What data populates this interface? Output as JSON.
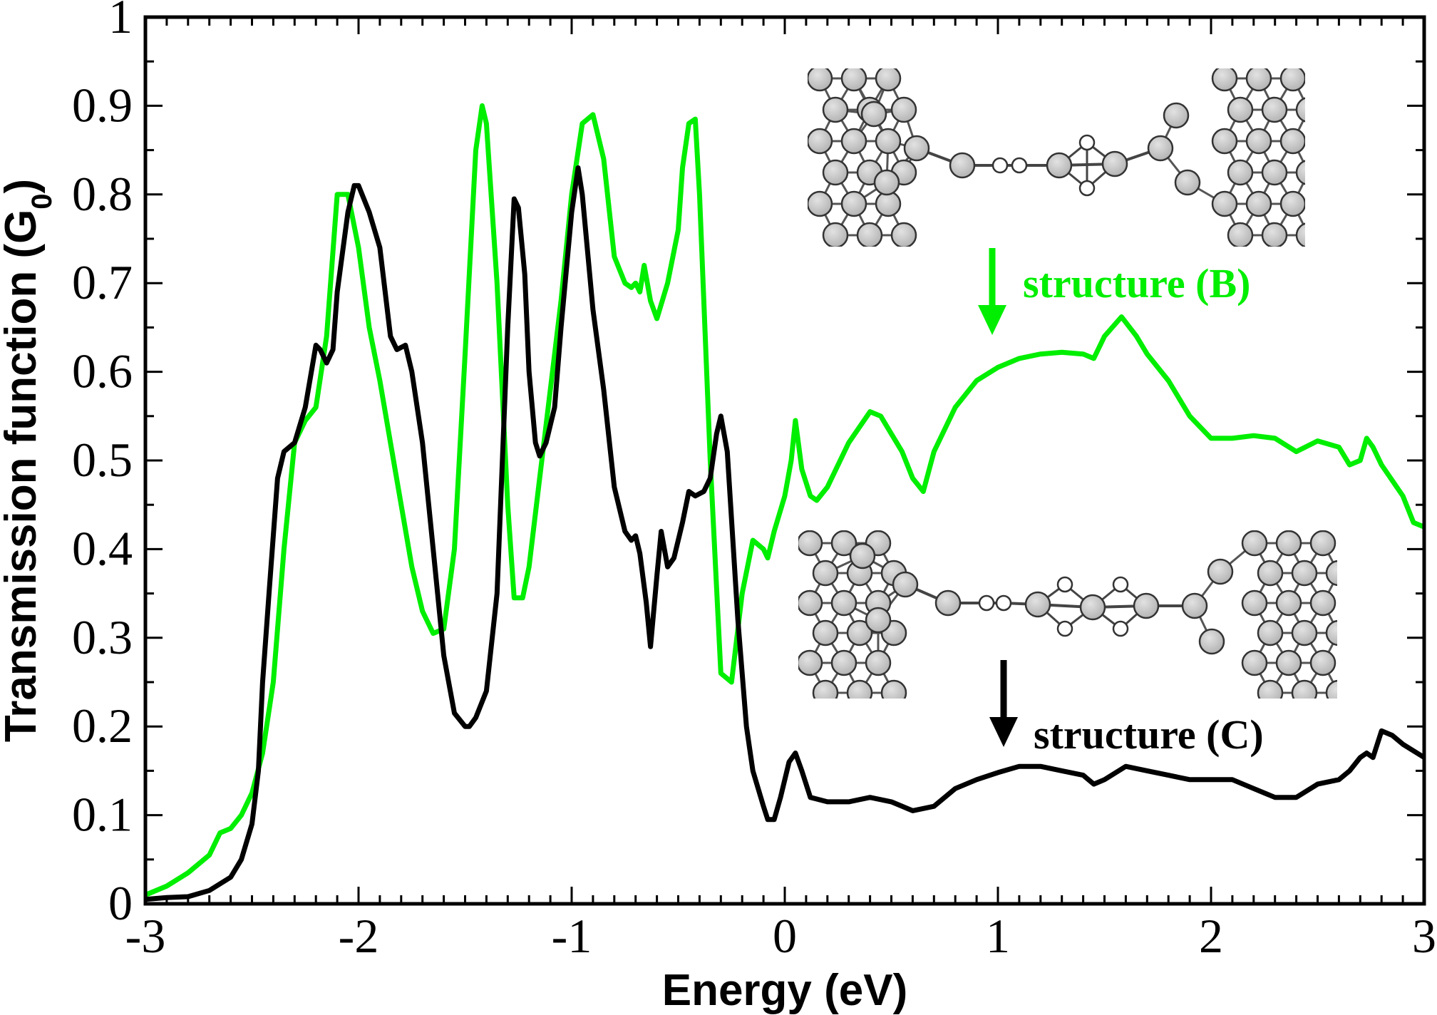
{
  "chart_data": {
    "type": "line",
    "xlabel": "Energy (eV)",
    "ylabel_main": "Transmission function (G",
    "ylabel_sub": "0",
    "ylabel_close": ")",
    "xlim": [
      -3,
      3
    ],
    "ylim": [
      0,
      1
    ],
    "x_ticks": [
      -3,
      -2,
      -1,
      0,
      1,
      2,
      3
    ],
    "x_tick_labels": [
      "-3",
      "-2",
      "-1",
      "0",
      "1",
      "2",
      "3"
    ],
    "y_ticks": [
      0,
      0.1,
      0.2,
      0.3,
      0.4,
      0.5,
      0.6,
      0.7,
      0.8,
      0.9,
      1
    ],
    "y_tick_labels": [
      "0",
      "0.1",
      "0.2",
      "0.3",
      "0.4",
      "0.5",
      "0.6",
      "0.7",
      "0.8",
      "0.9",
      "1"
    ],
    "grid": false,
    "series": [
      {
        "color": "#00ee00",
        "points": [
          [
            -3.0,
            0.01
          ],
          [
            -2.9,
            0.02
          ],
          [
            -2.8,
            0.035
          ],
          [
            -2.7,
            0.055
          ],
          [
            -2.65,
            0.08
          ],
          [
            -2.6,
            0.085
          ],
          [
            -2.55,
            0.1
          ],
          [
            -2.5,
            0.125
          ],
          [
            -2.45,
            0.17
          ],
          [
            -2.4,
            0.25
          ],
          [
            -2.35,
            0.4
          ],
          [
            -2.3,
            0.52
          ],
          [
            -2.25,
            0.545
          ],
          [
            -2.2,
            0.56
          ],
          [
            -2.15,
            0.64
          ],
          [
            -2.1,
            0.8
          ],
          [
            -2.05,
            0.8
          ],
          [
            -2.0,
            0.74
          ],
          [
            -1.95,
            0.65
          ],
          [
            -1.9,
            0.59
          ],
          [
            -1.85,
            0.52
          ],
          [
            -1.8,
            0.45
          ],
          [
            -1.75,
            0.38
          ],
          [
            -1.7,
            0.33
          ],
          [
            -1.65,
            0.305
          ],
          [
            -1.6,
            0.31
          ],
          [
            -1.55,
            0.4
          ],
          [
            -1.5,
            0.62
          ],
          [
            -1.45,
            0.85
          ],
          [
            -1.42,
            0.9
          ],
          [
            -1.4,
            0.88
          ],
          [
            -1.35,
            0.7
          ],
          [
            -1.3,
            0.45
          ],
          [
            -1.27,
            0.345
          ],
          [
            -1.23,
            0.345
          ],
          [
            -1.2,
            0.38
          ],
          [
            -1.15,
            0.48
          ],
          [
            -1.1,
            0.58
          ],
          [
            -1.05,
            0.68
          ],
          [
            -1.0,
            0.8
          ],
          [
            -0.95,
            0.88
          ],
          [
            -0.9,
            0.89
          ],
          [
            -0.85,
            0.84
          ],
          [
            -0.8,
            0.73
          ],
          [
            -0.75,
            0.7
          ],
          [
            -0.72,
            0.695
          ],
          [
            -0.7,
            0.7
          ],
          [
            -0.68,
            0.69
          ],
          [
            -0.66,
            0.72
          ],
          [
            -0.63,
            0.68
          ],
          [
            -0.6,
            0.66
          ],
          [
            -0.55,
            0.7
          ],
          [
            -0.5,
            0.76
          ],
          [
            -0.48,
            0.83
          ],
          [
            -0.45,
            0.88
          ],
          [
            -0.42,
            0.885
          ],
          [
            -0.4,
            0.8
          ],
          [
            -0.35,
            0.5
          ],
          [
            -0.3,
            0.26
          ],
          [
            -0.25,
            0.25
          ],
          [
            -0.2,
            0.35
          ],
          [
            -0.15,
            0.41
          ],
          [
            -0.1,
            0.4
          ],
          [
            -0.08,
            0.39
          ],
          [
            -0.05,
            0.42
          ],
          [
            0.0,
            0.46
          ],
          [
            0.03,
            0.5
          ],
          [
            0.05,
            0.545
          ],
          [
            0.08,
            0.49
          ],
          [
            0.12,
            0.46
          ],
          [
            0.15,
            0.455
          ],
          [
            0.2,
            0.47
          ],
          [
            0.3,
            0.52
          ],
          [
            0.4,
            0.555
          ],
          [
            0.45,
            0.55
          ],
          [
            0.5,
            0.53
          ],
          [
            0.55,
            0.51
          ],
          [
            0.6,
            0.48
          ],
          [
            0.65,
            0.465
          ],
          [
            0.7,
            0.51
          ],
          [
            0.8,
            0.56
          ],
          [
            0.9,
            0.59
          ],
          [
            1.0,
            0.605
          ],
          [
            1.1,
            0.615
          ],
          [
            1.2,
            0.62
          ],
          [
            1.3,
            0.622
          ],
          [
            1.4,
            0.62
          ],
          [
            1.45,
            0.615
          ],
          [
            1.5,
            0.64
          ],
          [
            1.58,
            0.662
          ],
          [
            1.65,
            0.64
          ],
          [
            1.7,
            0.62
          ],
          [
            1.8,
            0.59
          ],
          [
            1.9,
            0.55
          ],
          [
            2.0,
            0.525
          ],
          [
            2.1,
            0.525
          ],
          [
            2.2,
            0.528
          ],
          [
            2.3,
            0.525
          ],
          [
            2.4,
            0.51
          ],
          [
            2.5,
            0.522
          ],
          [
            2.6,
            0.515
          ],
          [
            2.65,
            0.495
          ],
          [
            2.7,
            0.5
          ],
          [
            2.73,
            0.525
          ],
          [
            2.76,
            0.515
          ],
          [
            2.8,
            0.495
          ],
          [
            2.9,
            0.46
          ],
          [
            2.95,
            0.43
          ],
          [
            3.0,
            0.425
          ]
        ]
      },
      {
        "color": "#000000",
        "points": [
          [
            -3.0,
            0.005
          ],
          [
            -2.9,
            0.007
          ],
          [
            -2.8,
            0.008
          ],
          [
            -2.7,
            0.015
          ],
          [
            -2.6,
            0.03
          ],
          [
            -2.55,
            0.05
          ],
          [
            -2.5,
            0.09
          ],
          [
            -2.47,
            0.15
          ],
          [
            -2.45,
            0.25
          ],
          [
            -2.42,
            0.35
          ],
          [
            -2.38,
            0.48
          ],
          [
            -2.35,
            0.51
          ],
          [
            -2.3,
            0.52
          ],
          [
            -2.25,
            0.56
          ],
          [
            -2.2,
            0.63
          ],
          [
            -2.18,
            0.625
          ],
          [
            -2.15,
            0.61
          ],
          [
            -2.12,
            0.625
          ],
          [
            -2.1,
            0.69
          ],
          [
            -2.05,
            0.78
          ],
          [
            -2.02,
            0.81
          ],
          [
            -2.0,
            0.81
          ],
          [
            -1.95,
            0.78
          ],
          [
            -1.9,
            0.74
          ],
          [
            -1.85,
            0.64
          ],
          [
            -1.82,
            0.625
          ],
          [
            -1.78,
            0.63
          ],
          [
            -1.75,
            0.6
          ],
          [
            -1.7,
            0.52
          ],
          [
            -1.65,
            0.4
          ],
          [
            -1.6,
            0.28
          ],
          [
            -1.55,
            0.215
          ],
          [
            -1.5,
            0.2
          ],
          [
            -1.48,
            0.2
          ],
          [
            -1.45,
            0.21
          ],
          [
            -1.4,
            0.24
          ],
          [
            -1.35,
            0.35
          ],
          [
            -1.3,
            0.65
          ],
          [
            -1.27,
            0.795
          ],
          [
            -1.25,
            0.785
          ],
          [
            -1.22,
            0.71
          ],
          [
            -1.2,
            0.6
          ],
          [
            -1.17,
            0.52
          ],
          [
            -1.15,
            0.505
          ],
          [
            -1.12,
            0.52
          ],
          [
            -1.08,
            0.56
          ],
          [
            -1.05,
            0.65
          ],
          [
            -1.0,
            0.78
          ],
          [
            -0.97,
            0.83
          ],
          [
            -0.95,
            0.8
          ],
          [
            -0.9,
            0.67
          ],
          [
            -0.85,
            0.58
          ],
          [
            -0.8,
            0.47
          ],
          [
            -0.75,
            0.42
          ],
          [
            -0.72,
            0.41
          ],
          [
            -0.7,
            0.415
          ],
          [
            -0.68,
            0.395
          ],
          [
            -0.65,
            0.34
          ],
          [
            -0.63,
            0.29
          ],
          [
            -0.6,
            0.37
          ],
          [
            -0.58,
            0.42
          ],
          [
            -0.55,
            0.38
          ],
          [
            -0.52,
            0.39
          ],
          [
            -0.48,
            0.43
          ],
          [
            -0.45,
            0.465
          ],
          [
            -0.42,
            0.46
          ],
          [
            -0.38,
            0.465
          ],
          [
            -0.35,
            0.48
          ],
          [
            -0.32,
            0.53
          ],
          [
            -0.3,
            0.55
          ],
          [
            -0.27,
            0.51
          ],
          [
            -0.22,
            0.32
          ],
          [
            -0.18,
            0.2
          ],
          [
            -0.15,
            0.15
          ],
          [
            -0.1,
            0.11
          ],
          [
            -0.08,
            0.095
          ],
          [
            -0.05,
            0.095
          ],
          [
            -0.02,
            0.12
          ],
          [
            0.02,
            0.16
          ],
          [
            0.05,
            0.17
          ],
          [
            0.08,
            0.15
          ],
          [
            0.12,
            0.12
          ],
          [
            0.2,
            0.115
          ],
          [
            0.3,
            0.115
          ],
          [
            0.4,
            0.12
          ],
          [
            0.5,
            0.115
          ],
          [
            0.6,
            0.105
          ],
          [
            0.7,
            0.11
          ],
          [
            0.8,
            0.13
          ],
          [
            0.9,
            0.14
          ],
          [
            1.0,
            0.148
          ],
          [
            1.1,
            0.155
          ],
          [
            1.2,
            0.155
          ],
          [
            1.3,
            0.15
          ],
          [
            1.4,
            0.145
          ],
          [
            1.45,
            0.135
          ],
          [
            1.5,
            0.14
          ],
          [
            1.6,
            0.155
          ],
          [
            1.7,
            0.15
          ],
          [
            1.8,
            0.145
          ],
          [
            1.9,
            0.14
          ],
          [
            2.0,
            0.14
          ],
          [
            2.1,
            0.14
          ],
          [
            2.2,
            0.13
          ],
          [
            2.3,
            0.12
          ],
          [
            2.4,
            0.12
          ],
          [
            2.5,
            0.135
          ],
          [
            2.6,
            0.14
          ],
          [
            2.65,
            0.15
          ],
          [
            2.7,
            0.165
          ],
          [
            2.73,
            0.17
          ],
          [
            2.76,
            0.165
          ],
          [
            2.8,
            0.195
          ],
          [
            2.85,
            0.19
          ],
          [
            2.9,
            0.18
          ],
          [
            3.0,
            0.165
          ]
        ]
      }
    ],
    "annotations": [
      {
        "text": "structure (B)",
        "color": "#00ee00"
      },
      {
        "text": "structure (C)",
        "color": "#000000"
      }
    ]
  },
  "insets": [
    {
      "name": "structure-b-inset",
      "bridge": "two small atoms then a ring cluster"
    },
    {
      "name": "structure-c-inset",
      "bridge": "two small atoms then two ring clusters"
    }
  ]
}
